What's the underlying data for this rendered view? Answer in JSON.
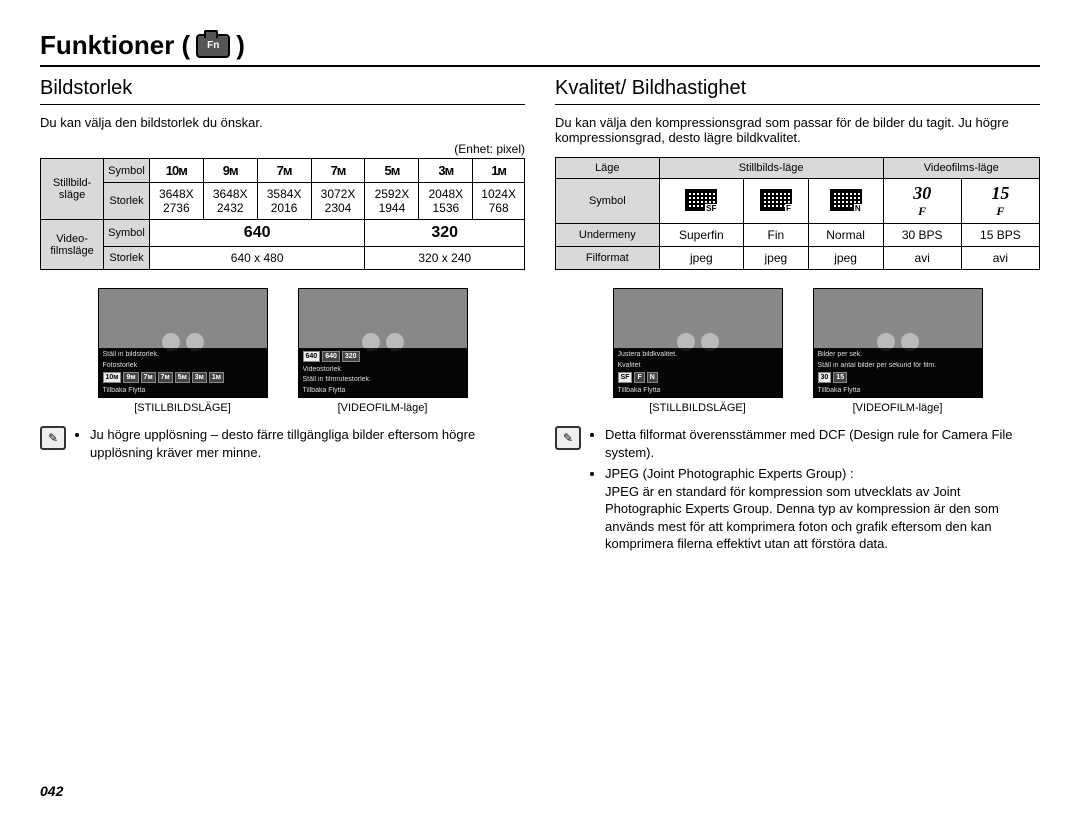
{
  "page": {
    "title": "Funktioner (",
    "title_close": ")",
    "number": "042"
  },
  "left": {
    "heading": "Bildstorlek",
    "intro": "Du kan välja den bildstorlek du önskar.",
    "unit": "(Enhet: pixel)",
    "table": {
      "group_still": "Stillbild-släge",
      "group_video": "Video-filmsläge",
      "row_symbol": "Symbol",
      "row_size": "Storlek",
      "still_icons": [
        "10ᴍ",
        "9ᴍ",
        "7ᴍ",
        "7ᴍ",
        "5ᴍ",
        "3ᴍ",
        "1ᴍ"
      ],
      "still_sizes": [
        "3648X 2736",
        "3648X 2432",
        "3584X 2016",
        "3072X 2304",
        "2592X 1944",
        "2048X 1536",
        "1024X 768"
      ],
      "video_icons": [
        "640",
        "320"
      ],
      "video_sizes": [
        "640 x 480",
        "320 x 240"
      ]
    },
    "thumbs": {
      "left_caption": "[STILLBILDSLÄGE]",
      "right_caption": "[VIDEOFILM-läge]",
      "menu_line1_l": "Ställ in bildstorlek.",
      "menu_line2_l": "Fotostorlek",
      "tiles_l": [
        "10ᴍ",
        "9ᴍ",
        "7ᴍ",
        "7ᴍ",
        "5ᴍ",
        "3ᴍ",
        "1ᴍ"
      ],
      "menu_line1_r": "Videostorlek",
      "menu_line2_r": "Ställ in filmrutestorlek.",
      "tiles_r": [
        "640",
        "640",
        "320"
      ],
      "footer": "Tillbaka        Flytta"
    },
    "note": "Ju högre upplösning – desto färre tillgängliga bilder eftersom högre upplösning kräver mer minne."
  },
  "right": {
    "heading": "Kvalitet/ Bildhastighet",
    "intro": "Du kan välja den kompressionsgrad som passar för de bilder du tagit. Ju högre kompressionsgrad, desto lägre bildkvalitet.",
    "table": {
      "row_mode": "Läge",
      "row_symbol": "Symbol",
      "row_submenu": "Undermeny",
      "row_format": "Filformat",
      "mode_still": "Stillbilds-läge",
      "mode_video": "Videofilms-läge",
      "fps30": "30",
      "fps15": "15",
      "submenu": [
        "Superfin",
        "Fin",
        "Normal",
        "30 BPS",
        "15 BPS"
      ],
      "format": [
        "jpeg",
        "jpeg",
        "jpeg",
        "avi",
        "avi"
      ]
    },
    "thumbs": {
      "left_caption": "[STILLBILDSLÄGE]",
      "right_caption": "[VIDEOFILM-läge]",
      "menu_line1_l": "Justera bildkvalitet.",
      "menu_line2_l": "Kvalitet",
      "menu_line1_r": "Bilder per sek.",
      "menu_line2_r": "Ställ in antal bilder per sekund för film.",
      "footer": "Tillbaka        Flytta"
    },
    "notes": [
      "Detta filformat överensstämmer med DCF (Design rule for Camera File system).",
      "JPEG (Joint Photographic Experts Group) :"
    ],
    "note_detail": "JPEG är en standard för kompression som utvecklats av Joint Photographic Experts Group. Denna typ av kompression är den som används mest för att komprimera foton och grafik eftersom den kan komprimera filerna effektivt utan att förstöra data."
  }
}
